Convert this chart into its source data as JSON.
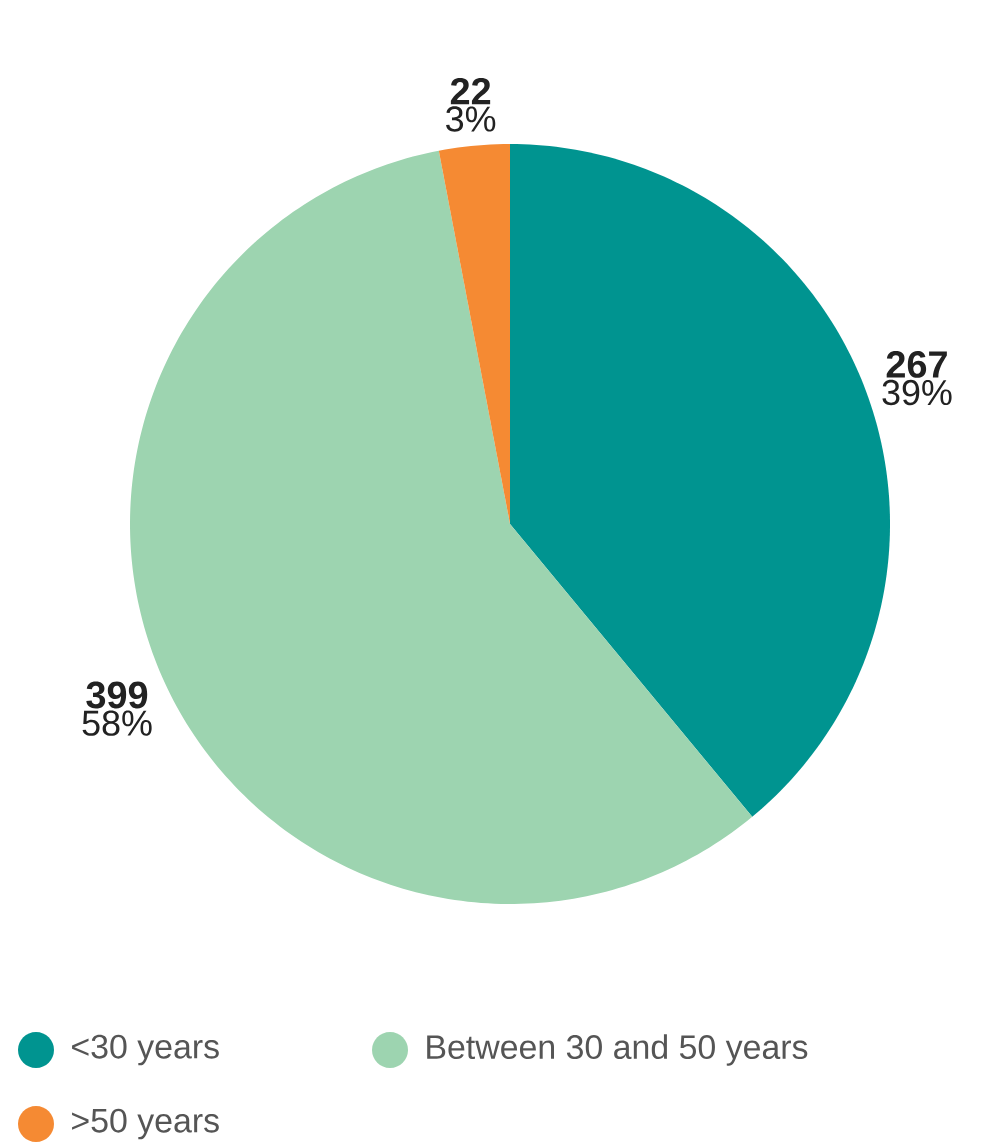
{
  "chart_data": {
    "type": "pie",
    "categories": [
      "<30 years",
      "Between 30 and 50 years",
      ">50 years"
    ],
    "values": [
      39,
      58,
      3
    ],
    "annotations": [
      "267",
      "399",
      "22"
    ],
    "colors": [
      "#009490",
      "#9dd4b0",
      "#f58a33"
    ],
    "value_labels": [
      "39%",
      "58%",
      "3%"
    ],
    "legend": "bottom"
  }
}
